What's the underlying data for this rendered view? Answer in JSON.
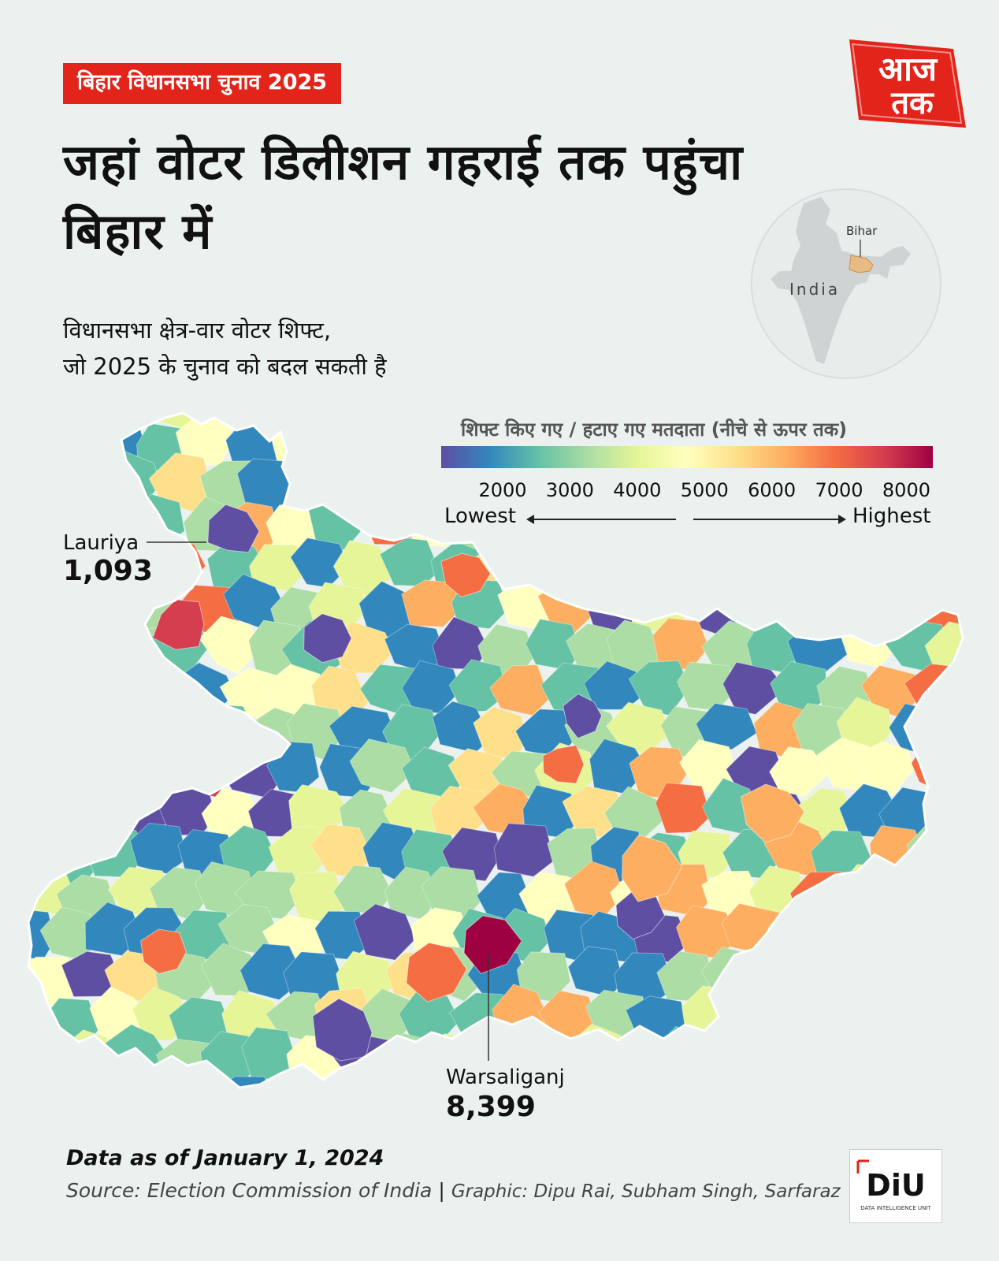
{
  "header": {
    "tag": "बिहार विधानसभा चुनाव 2025",
    "headline": "जहां वोटर डिलीशन गहराई तक पहुंचा बिहार में",
    "subtitle_line1": "विधानसभा क्षेत्र-वार वोटर शिफ्ट,",
    "subtitle_line2": "जो 2025 के चुनाव को बदल सकती है"
  },
  "logo": {
    "line1": "आज",
    "line2": "तक",
    "color": "#e3241b"
  },
  "locator": {
    "country": "India",
    "state": "Bihar"
  },
  "legend": {
    "title": "शिफ्ट किए गए / हटाए गए मतदाता (नीचे से ऊपर तक)",
    "ticks": [
      "2000",
      "3000",
      "4000",
      "5000",
      "6000",
      "7000",
      "8000"
    ],
    "low_label": "Lowest",
    "high_label": "Highest",
    "color_scale": [
      "#5e4fa2",
      "#3288bd",
      "#66c2a5",
      "#abdda4",
      "#e6f598",
      "#ffffbf",
      "#fee08b",
      "#fdae61",
      "#f46d43",
      "#d53e4f",
      "#9e0142"
    ]
  },
  "annotations": {
    "lowest": {
      "name": "Lauriya",
      "value": "1,093"
    },
    "highest": {
      "name": "Warsaliganj",
      "value": "8,399"
    }
  },
  "footer": {
    "date": "Data as of January 1, 2024",
    "source": "Source: Election Commission of India",
    "separator": "|",
    "graphic": "Graphic: Dipu Rai, Subham Singh, Sarfaraz"
  },
  "diu": {
    "mark": "DiU",
    "caption": "DATA INTELLIGENCE UNIT"
  }
}
